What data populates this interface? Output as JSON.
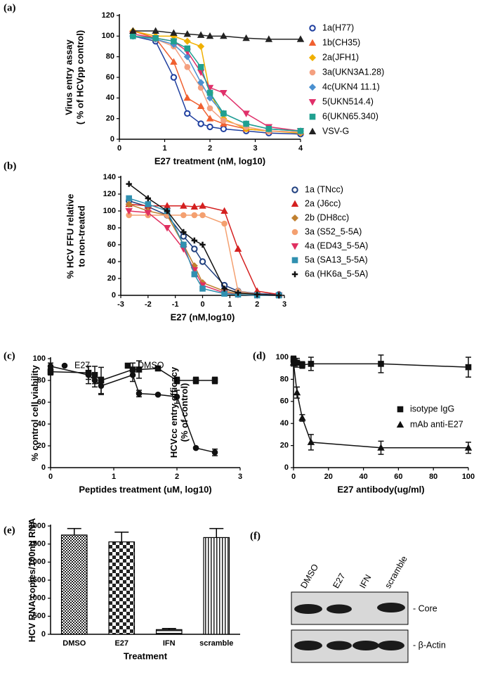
{
  "chart_data": [
    {
      "type": "line",
      "label": "(a)",
      "xlabel": "E27 treatment (nM, log10)",
      "ylabel": [
        "Virus entry assay",
        "( % of HCVpp control)"
      ],
      "x": [
        0.3,
        0.8,
        1.2,
        1.5,
        1.8,
        2,
        2.3,
        2.8,
        3.3,
        4
      ],
      "xlim": [
        0,
        4
      ],
      "xticks": [
        0,
        1,
        2,
        3,
        4
      ],
      "ylim": [
        0,
        120
      ],
      "yticks": [
        0,
        20,
        40,
        60,
        80,
        100,
        120
      ],
      "series": [
        {
          "name": "1a(H77)",
          "color": "#1f3f9f",
          "marker": "circle-open",
          "values": [
            100,
            95,
            60,
            25,
            15,
            12,
            10,
            8,
            6,
            5
          ]
        },
        {
          "name": "1b(CH35)",
          "color": "#f06030",
          "marker": "triangle",
          "values": [
            105,
            98,
            75,
            40,
            32,
            20,
            15,
            10,
            8,
            7
          ]
        },
        {
          "name": "2a(JFH1)",
          "color": "#f0b000",
          "marker": "diamond",
          "values": [
            105,
            100,
            100,
            95,
            90,
            45,
            20,
            10,
            8,
            6
          ]
        },
        {
          "name": "3a(UKN3A1.28)",
          "color": "#f4a080",
          "marker": "circle",
          "values": [
            100,
            97,
            90,
            70,
            50,
            30,
            18,
            12,
            8,
            7
          ]
        },
        {
          "name": "4c(UKN4 11.1)",
          "color": "#4a90d0",
          "marker": "diamond",
          "values": [
            100,
            97,
            92,
            80,
            55,
            40,
            25,
            15,
            10,
            8
          ]
        },
        {
          "name": "5(UKN514.4)",
          "color": "#e0306a",
          "marker": "triangle-down",
          "values": [
            102,
            98,
            95,
            85,
            65,
            50,
            45,
            25,
            12,
            8
          ]
        },
        {
          "name": "6(UKN65.340)",
          "color": "#20a090",
          "marker": "square",
          "values": [
            100,
            98,
            95,
            88,
            70,
            45,
            25,
            15,
            10,
            8
          ]
        },
        {
          "name": "VSV-G",
          "color": "#222222",
          "marker": "triangle",
          "values": [
            105,
            105,
            103,
            102,
            101,
            100,
            100,
            98,
            97,
            97
          ]
        }
      ]
    },
    {
      "type": "line",
      "label": "(b)",
      "xlabel": "E27 (nM,log10)",
      "ylabel": [
        "% HCV FFU relative",
        "to non-treated"
      ],
      "x": [
        -2.7,
        -2,
        -1.3,
        -0.7,
        -0.3,
        0,
        0.8,
        1.3,
        2,
        2.8
      ],
      "xlim": [
        -3,
        3
      ],
      "xticks": [
        -3,
        -2,
        -1,
        0,
        1,
        2,
        3
      ],
      "ylim": [
        0,
        140
      ],
      "yticks": [
        0,
        20,
        40,
        60,
        80,
        100,
        120,
        140
      ],
      "series": [
        {
          "name": "1a (TNcc)",
          "color": "#1f3f7f",
          "marker": "circle-open",
          "values": [
            112,
            105,
            95,
            70,
            55,
            40,
            12,
            5,
            2,
            1
          ]
        },
        {
          "name": "2a (J6cc)",
          "color": "#d42020",
          "marker": "triangle",
          "values": [
            108,
            106,
            106,
            106,
            105,
            106,
            100,
            55,
            5,
            1
          ]
        },
        {
          "name": "2b (DH8cc)",
          "color": "#c08030",
          "marker": "diamond",
          "values": [
            108,
            100,
            95,
            60,
            35,
            15,
            5,
            2,
            1,
            0
          ]
        },
        {
          "name": "3a (S52_5-5A)",
          "color": "#f4a070",
          "marker": "circle",
          "values": [
            95,
            95,
            95,
            95,
            95,
            95,
            85,
            5,
            1,
            0
          ]
        },
        {
          "name": "4a (ED43_5-5A)",
          "color": "#e03060",
          "marker": "triangle-down",
          "values": [
            100,
            98,
            80,
            55,
            30,
            12,
            3,
            1,
            0,
            0
          ]
        },
        {
          "name": "5a (SA13_5-5A)",
          "color": "#3090b0",
          "marker": "square",
          "values": [
            115,
            108,
            100,
            60,
            25,
            8,
            2,
            1,
            0,
            0
          ]
        },
        {
          "name": "6a (HK6a_5-5A)",
          "color": "#111111",
          "marker": "plus",
          "values": [
            132,
            115,
            100,
            75,
            65,
            60,
            8,
            3,
            1,
            0
          ]
        }
      ]
    },
    {
      "type": "line",
      "label": "(c)",
      "xlabel": "Peptides treatment (uM, log10)",
      "ylabel": [
        "% control cell viability"
      ],
      "x": [
        0,
        0.6,
        0.7,
        0.8,
        1.3,
        1.4,
        1.7,
        2,
        2.3,
        2.6
      ],
      "xlim": [
        0,
        3
      ],
      "xticks": [
        0,
        1,
        2,
        3
      ],
      "ylim": [
        0,
        100
      ],
      "yticks": [
        0,
        20,
        40,
        60,
        80,
        100
      ],
      "series": [
        {
          "name": "E27",
          "color": "#111111",
          "marker": "circle",
          "values": [
            93,
            85,
            80,
            75,
            85,
            68,
            67,
            65,
            18,
            14
          ],
          "errors": [
            3,
            8,
            6,
            8,
            6,
            3,
            0,
            6,
            0,
            3
          ]
        },
        {
          "name": "DMSO",
          "color": "#111111",
          "marker": "square",
          "values": [
            88,
            87,
            85,
            80,
            90,
            90,
            91,
            80,
            80,
            80
          ],
          "errors": [
            3,
            6,
            8,
            12,
            6,
            8,
            0,
            3,
            3,
            3
          ]
        }
      ]
    },
    {
      "type": "line",
      "label": "(d)",
      "xlabel": "E27 antibody(ug/ml)",
      "ylabel": [
        "HCVcc entry efficacy",
        "(% of control)"
      ],
      "x": [
        0,
        2,
        5,
        10,
        50,
        100
      ],
      "xlim": [
        0,
        100
      ],
      "xticks": [
        0,
        20,
        40,
        60,
        80,
        100
      ],
      "ylim": [
        0,
        100
      ],
      "yticks": [
        0,
        20,
        40,
        60,
        80,
        100
      ],
      "series": [
        {
          "name": "isotype IgG",
          "color": "#111111",
          "marker": "square",
          "values": [
            98,
            95,
            93,
            94,
            94,
            91
          ],
          "errors": [
            3,
            4,
            3,
            6,
            8,
            9
          ]
        },
        {
          "name": "mAb anti-E27",
          "color": "#111111",
          "marker": "triangle",
          "values": [
            95,
            68,
            45,
            23,
            18,
            18
          ],
          "errors": [
            3,
            5,
            3,
            7,
            6,
            5
          ]
        }
      ]
    },
    {
      "type": "bar",
      "label": "(e)",
      "xlabel": "Treatment",
      "ylabel": [
        "HCV RNA copies/100ng RNA"
      ],
      "categories": [
        "DMSO",
        "E27",
        "IFN",
        "scramble"
      ],
      "values": [
        2750,
        2560,
        130,
        2680
      ],
      "errors": [
        180,
        270,
        30,
        250
      ],
      "ylim": [
        0,
        3000
      ],
      "yticks": [
        0,
        500,
        1000,
        1500,
        2000,
        2500,
        3000
      ]
    }
  ],
  "blot": {
    "label": "(f)",
    "lanes": [
      "DMSO",
      "E27",
      "IFN",
      "scramble"
    ],
    "bands": [
      "- Core",
      "- β-Actin"
    ]
  }
}
